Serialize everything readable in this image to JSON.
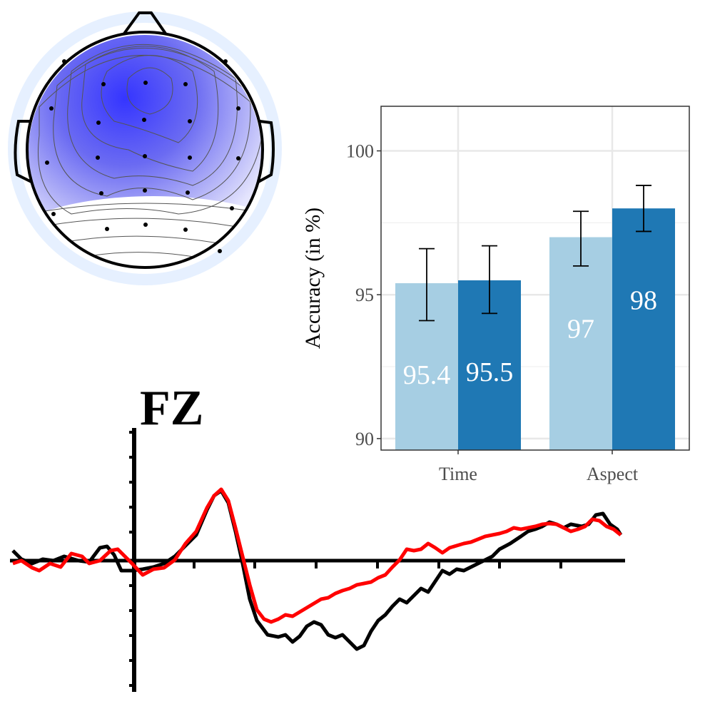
{
  "erp_panel": {
    "label": "FZ",
    "series_colors": [
      "#000000",
      "#ff0000"
    ]
  },
  "topomap": {
    "colors": {
      "strong": "#3b3bff",
      "weak": "#dcdcff",
      "outer": "#e6f0ff"
    }
  },
  "chart_data": {
    "type": "bar",
    "categories": [
      "Time",
      "Aspect"
    ],
    "series": [
      {
        "color": "#a6cee3",
        "values": [
          95.4,
          97
        ],
        "errors": [
          [
            94.1,
            96.6
          ],
          [
            96.0,
            97.9
          ]
        ],
        "value_labels": [
          "95.4",
          "97"
        ]
      },
      {
        "color": "#1f78b4",
        "values": [
          95.5,
          98
        ],
        "errors": [
          [
            94.35,
            96.7
          ],
          [
            97.2,
            98.8
          ]
        ],
        "value_labels": [
          "95.5",
          "98"
        ]
      }
    ],
    "xlabel": "",
    "ylabel": "Accuracy (in %)",
    "ylim": [
      89.6,
      101.55
    ],
    "yticks": [
      "90",
      "95",
      "100"
    ],
    "grid": true
  }
}
